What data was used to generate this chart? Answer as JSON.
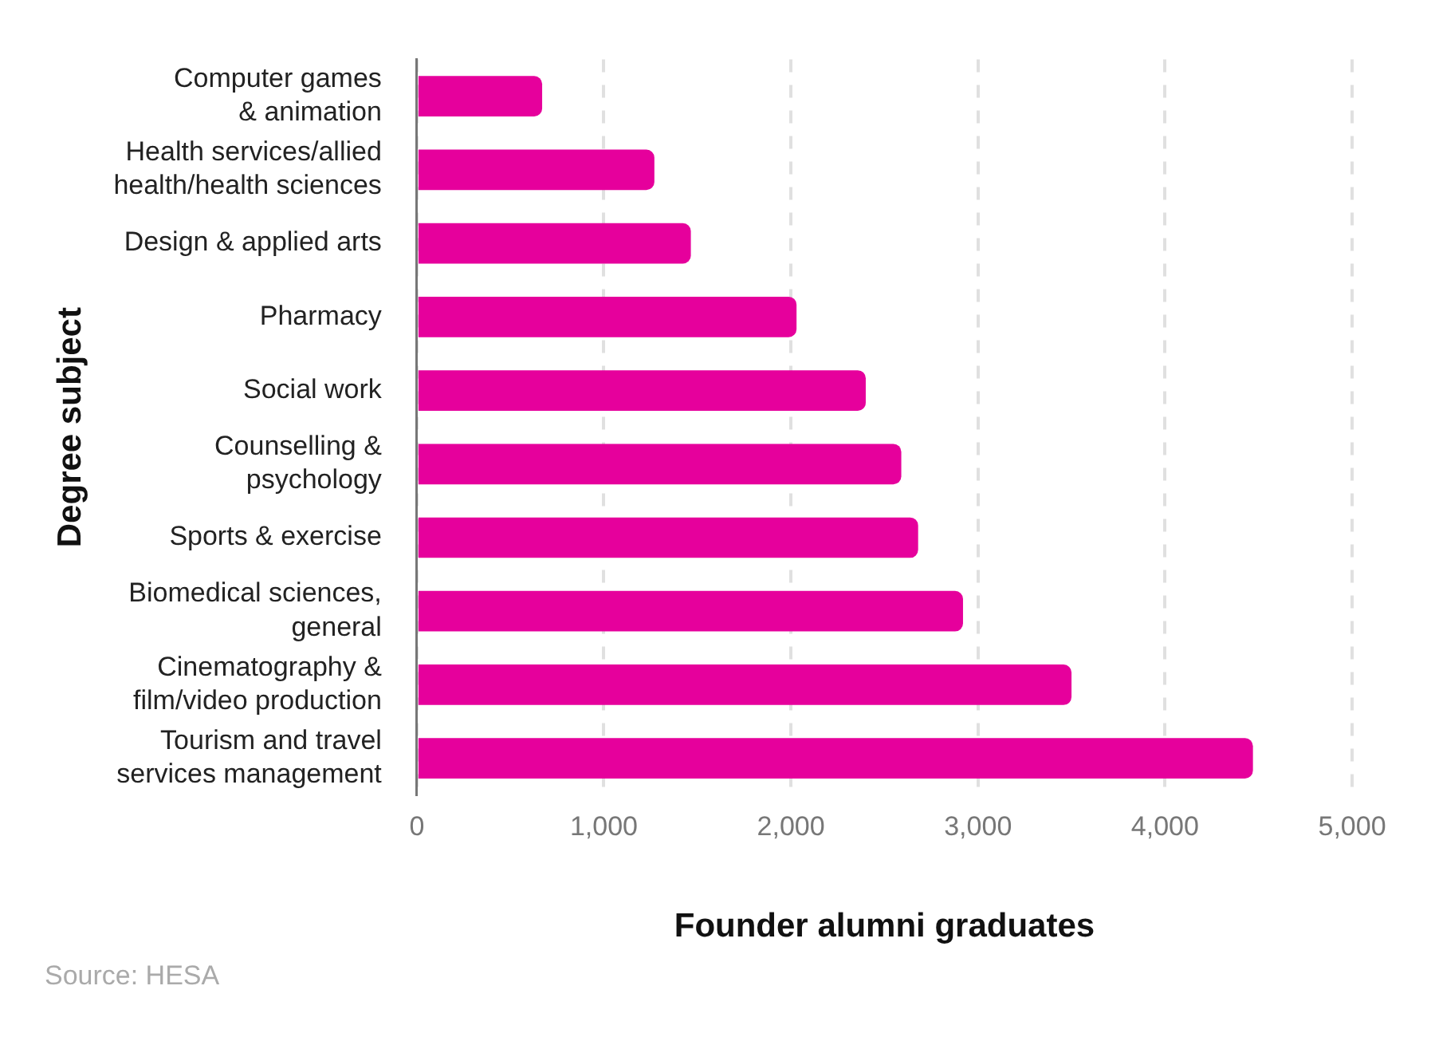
{
  "chart_data": {
    "type": "bar",
    "orientation": "horizontal",
    "categories": [
      "Computer games\n& animation",
      "Health services/allied\nhealth/health sciences",
      "Design & applied arts",
      "Pharmacy",
      "Social work",
      "Counselling &\npsychology",
      "Sports & exercise",
      "Biomedical sciences,\ngeneral",
      "Cinematography &\nfilm/video production",
      "Tourism and travel\nservices management"
    ],
    "values": [
      670,
      1270,
      1465,
      2030,
      2400,
      2590,
      2680,
      2920,
      3500,
      4470
    ],
    "color": "#e6009c",
    "xlim": [
      0,
      5000
    ],
    "xticks": [
      {
        "value": 0,
        "label": "0"
      },
      {
        "value": 1000,
        "label": "1,000"
      },
      {
        "value": 2000,
        "label": "2,000"
      },
      {
        "value": 3000,
        "label": "3,000"
      },
      {
        "value": 4000,
        "label": "4,000"
      },
      {
        "value": 5000,
        "label": "5,000"
      }
    ],
    "xlabel": "Founder alumni graduates",
    "ylabel": "Degree subject",
    "grid": "x",
    "annotations": [
      "Source: HESA"
    ]
  }
}
